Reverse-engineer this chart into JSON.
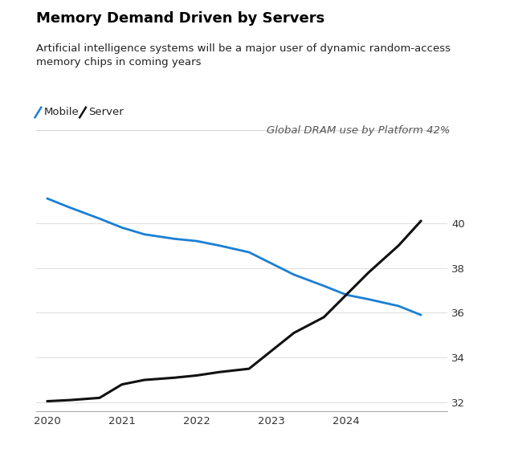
{
  "title": "Memory Demand Driven by Servers",
  "subtitle": "Artificial intelligence systems will be a major user of dynamic random-access\nmemory chips in coming years",
  "annotation": "Global DRAM use by Platform 42%",
  "legend_mobile": "Mobile",
  "legend_server": "Server",
  "mobile_x": [
    2020,
    2020.3,
    2020.7,
    2021,
    2021.3,
    2021.7,
    2022,
    2022.3,
    2022.7,
    2023,
    2023.3,
    2023.7,
    2024,
    2024.3,
    2024.7,
    2025
  ],
  "mobile_y": [
    41.1,
    40.7,
    40.2,
    39.8,
    39.5,
    39.3,
    39.2,
    39.0,
    38.7,
    38.2,
    37.7,
    37.2,
    36.8,
    36.6,
    36.3,
    35.9
  ],
  "server_x": [
    2020,
    2020.3,
    2020.7,
    2021,
    2021.3,
    2021.7,
    2022,
    2022.3,
    2022.7,
    2023,
    2023.3,
    2023.7,
    2024,
    2024.3,
    2024.7,
    2025
  ],
  "server_y": [
    32.05,
    32.1,
    32.2,
    32.8,
    33.0,
    33.1,
    33.2,
    33.35,
    33.5,
    34.3,
    35.1,
    35.8,
    36.8,
    37.8,
    39.0,
    40.1
  ],
  "mobile_color": "#1a7fd4",
  "server_color": "#111111",
  "background_color": "#ffffff",
  "xlim": [
    2019.85,
    2025.35
  ],
  "ylim": [
    31.6,
    41.8
  ],
  "yticks": [
    32,
    34,
    36,
    38,
    40
  ],
  "xticks": [
    2020,
    2021,
    2022,
    2023,
    2024
  ],
  "grid_color": "#dddddd",
  "title_fontsize": 13,
  "subtitle_fontsize": 9.5,
  "annotation_fontsize": 9.5,
  "tick_fontsize": 9.5
}
